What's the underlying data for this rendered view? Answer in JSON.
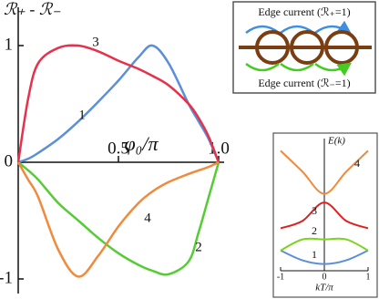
{
  "chart_data": [
    {
      "type": "line",
      "ylabel": "ℛ₊ - ℛ₋",
      "xlabel": "φ₀/π",
      "x": [
        0,
        0.05,
        0.1,
        0.2,
        0.3,
        0.4,
        0.5,
        0.6,
        0.67,
        0.75,
        0.85,
        0.9,
        0.95,
        1.0
      ],
      "xlim": [
        0,
        1
      ],
      "ylim": [
        -1,
        1
      ],
      "xticks": [
        0,
        0.5,
        {
          "value": 1,
          "label": "1.0"
        }
      ],
      "yticks": [
        -1,
        0,
        1
      ],
      "series": [
        {
          "name": "1",
          "color": "#5b8fd8",
          "values": [
            0,
            0.03,
            0.08,
            0.2,
            0.35,
            0.52,
            0.7,
            0.9,
            1.0,
            0.85,
            0.5,
            0.35,
            0.2,
            0
          ]
        },
        {
          "name": "2",
          "color": "#55cc33",
          "values": [
            0,
            -0.07,
            -0.15,
            -0.35,
            -0.5,
            -0.65,
            -0.78,
            -0.88,
            -0.93,
            -0.96,
            -0.85,
            -0.6,
            -0.3,
            0
          ]
        },
        {
          "name": "3",
          "color": "#e8304a",
          "values": [
            0,
            0.55,
            0.85,
            0.98,
            1.0,
            0.95,
            0.87,
            0.8,
            0.74,
            0.66,
            0.5,
            0.38,
            0.22,
            0
          ]
        },
        {
          "name": "4",
          "color": "#f08a3c",
          "values": [
            0,
            -0.15,
            -0.3,
            -0.75,
            -0.98,
            -0.8,
            -0.55,
            -0.35,
            -0.25,
            -0.17,
            -0.1,
            -0.07,
            -0.04,
            0
          ]
        }
      ]
    },
    {
      "type": "line",
      "ylabel": "E(k)",
      "xlabel": "kT/π",
      "x": [
        -1,
        -0.5,
        0,
        0.5,
        1
      ],
      "xlim": [
        -1,
        1
      ],
      "ylim": [
        0,
        1
      ],
      "xticks": [
        -1,
        0,
        1
      ],
      "series": [
        {
          "name": "1",
          "color": "#5b8fd8",
          "values": [
            0.15,
            0.07,
            0.04,
            0.07,
            0.15
          ]
        },
        {
          "name": "2",
          "color": "#7ed321",
          "values": [
            0.15,
            0.24,
            0.24,
            0.24,
            0.15
          ]
        },
        {
          "name": "3",
          "color": "#e01f1f",
          "values": [
            0.33,
            0.39,
            0.54,
            0.39,
            0.33
          ]
        },
        {
          "name": "4",
          "color": "#f08a3c",
          "values": [
            0.96,
            0.79,
            0.61,
            0.79,
            0.96
          ]
        }
      ]
    }
  ],
  "diagram": {
    "top_label": "Edge current (ℛ₊=1)",
    "bottom_label": "Edge current (ℛ₋=1)"
  }
}
